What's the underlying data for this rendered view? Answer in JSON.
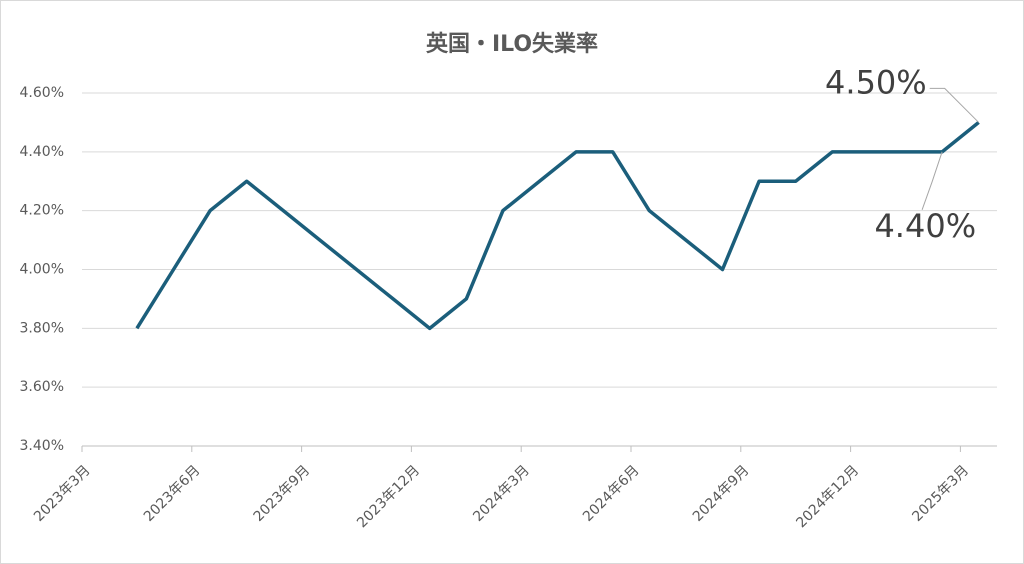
{
  "chart_data": {
    "type": "line",
    "title": "英国・ILO失業率",
    "x": [
      "2023-04",
      "2023-05",
      "2023-06",
      "2023-07",
      "2023-08",
      "2023-09",
      "2023-10",
      "2023-11",
      "2023-12",
      "2024-01",
      "2024-02",
      "2024-03",
      "2024-04",
      "2024-05",
      "2024-06",
      "2024-07",
      "2024-08",
      "2024-09",
      "2024-10",
      "2024-11",
      "2024-12",
      "2025-01",
      "2025-02",
      "2025-03"
    ],
    "series": [
      {
        "name": "ILO失業率",
        "color": "#1b5e7b",
        "values": [
          3.8,
          4.0,
          4.2,
          4.3,
          4.2,
          4.1,
          4.0,
          3.9,
          3.8,
          3.9,
          4.2,
          4.3,
          4.4,
          4.4,
          4.2,
          4.1,
          4.0,
          4.3,
          4.3,
          4.4,
          4.4,
          4.4,
          4.4,
          4.5
        ],
        "value_labels": [
          null,
          null,
          null,
          null,
          null,
          null,
          null,
          null,
          null,
          null,
          null,
          null,
          null,
          null,
          null,
          null,
          null,
          null,
          null,
          null,
          null,
          null,
          "4.40%",
          "4.50%"
        ]
      }
    ],
    "xlim": [
      "2023-03",
      "2025-04"
    ],
    "xticks": [
      {
        "value": "2023-03",
        "label": "2023年3月"
      },
      {
        "value": "2023-06",
        "label": "2023年6月"
      },
      {
        "value": "2023-09",
        "label": "2023年9月"
      },
      {
        "value": "2023-12",
        "label": "2023年12月"
      },
      {
        "value": "2024-03",
        "label": "2024年3月"
      },
      {
        "value": "2024-06",
        "label": "2024年6月"
      },
      {
        "value": "2024-09",
        "label": "2024年9月"
      },
      {
        "value": "2024-12",
        "label": "2024年12月"
      },
      {
        "value": "2025-03",
        "label": "2025年3月"
      }
    ],
    "ylim": [
      3.4,
      4.6
    ],
    "yticks": [
      {
        "value": 3.4,
        "label": "3.40%"
      },
      {
        "value": 3.6,
        "label": "3.60%"
      },
      {
        "value": 3.8,
        "label": "3.80%"
      },
      {
        "value": 4.0,
        "label": "4.00%"
      },
      {
        "value": 4.2,
        "label": "4.20%"
      },
      {
        "value": 4.4,
        "label": "4.40%"
      },
      {
        "value": 4.6,
        "label": "4.60%"
      }
    ],
    "grid": true
  }
}
